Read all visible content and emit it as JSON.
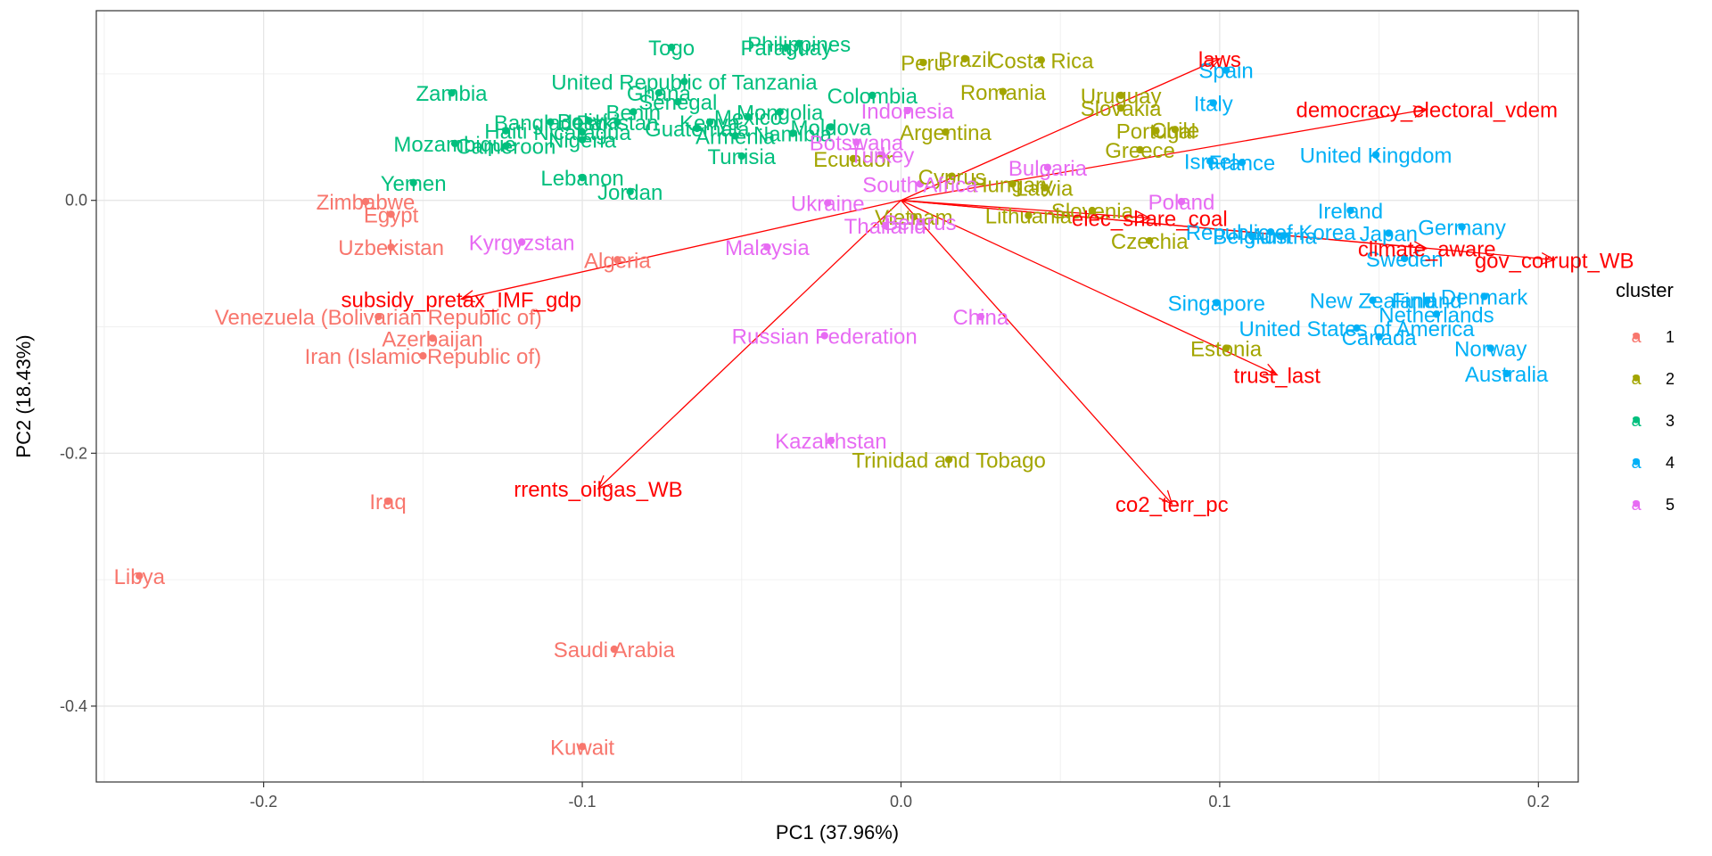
{
  "chart_data": {
    "type": "scatter",
    "xlabel": "PC1 (37.96%)",
    "ylabel": "PC2 (18.43%)",
    "xlim": [
      -0.2525,
      0.2125
    ],
    "ylim": [
      -0.46,
      0.15
    ],
    "x_ticks": [
      -0.2,
      -0.1,
      0.0,
      0.1,
      0.2
    ],
    "x_tick_labels": [
      "-0.2",
      "-0.1",
      "0.0",
      "0.1",
      "0.2"
    ],
    "y_ticks": [
      -0.4,
      -0.2,
      0.0
    ],
    "y_tick_labels": [
      "-0.4",
      "-0.2",
      "0.0"
    ],
    "grid": true,
    "legend": {
      "title": "cluster",
      "placement": "right",
      "items": [
        {
          "key": "1",
          "label": "1",
          "color": "#F8766D"
        },
        {
          "key": "2",
          "label": "2",
          "color": "#A3A500"
        },
        {
          "key": "3",
          "label": "3",
          "color": "#00BF7D"
        },
        {
          "key": "4",
          "label": "4",
          "color": "#00B0F6"
        },
        {
          "key": "5",
          "label": "5",
          "color": "#E76BF3"
        }
      ],
      "key_glyph": "a"
    },
    "colors": {
      "1": "#F8766D",
      "2": "#A3A500",
      "3": "#00BF7D",
      "4": "#00B0F6",
      "5": "#E76BF3",
      "vector": "#FF0000"
    },
    "points": [
      {
        "label": "Zimbabwe",
        "cluster": "1",
        "x": -0.168,
        "y": -0.001
      },
      {
        "label": "Egypt",
        "cluster": "1",
        "x": -0.16,
        "y": -0.011
      },
      {
        "label": "Uzbekistan",
        "cluster": "1",
        "x": -0.16,
        "y": -0.037
      },
      {
        "label": "Algeria",
        "cluster": "1",
        "x": -0.089,
        "y": -0.047
      },
      {
        "label": "Venezuela (Bolivarian Republic of)",
        "cluster": "1",
        "x": -0.164,
        "y": -0.092
      },
      {
        "label": "Azerbaijan",
        "cluster": "1",
        "x": -0.147,
        "y": -0.109
      },
      {
        "label": "Iran (Islamic Republic of)",
        "cluster": "1",
        "x": -0.15,
        "y": -0.123
      },
      {
        "label": "Iraq",
        "cluster": "1",
        "x": -0.161,
        "y": -0.238
      },
      {
        "label": "Libya",
        "cluster": "1",
        "x": -0.239,
        "y": -0.297
      },
      {
        "label": "Saudi Arabia",
        "cluster": "1",
        "x": -0.09,
        "y": -0.355
      },
      {
        "label": "Kuwait",
        "cluster": "1",
        "x": -0.1,
        "y": -0.432
      },
      {
        "label": "Brazil",
        "cluster": "2",
        "x": 0.02,
        "y": 0.112
      },
      {
        "label": "Peru",
        "cluster": "2",
        "x": 0.007,
        "y": 0.109
      },
      {
        "label": "Costa Rica",
        "cluster": "2",
        "x": 0.044,
        "y": 0.111
      },
      {
        "label": "Romania",
        "cluster": "2",
        "x": 0.032,
        "y": 0.086
      },
      {
        "label": "Uruguay",
        "cluster": "2",
        "x": 0.069,
        "y": 0.083
      },
      {
        "label": "Slovakia",
        "cluster": "2",
        "x": 0.069,
        "y": 0.073
      },
      {
        "label": "Argentina",
        "cluster": "2",
        "x": 0.014,
        "y": 0.054
      },
      {
        "label": "Portugal",
        "cluster": "2",
        "x": 0.08,
        "y": 0.055
      },
      {
        "label": "Chile",
        "cluster": "2",
        "x": 0.086,
        "y": 0.056
      },
      {
        "label": "Greece",
        "cluster": "2",
        "x": 0.075,
        "y": 0.04
      },
      {
        "label": "Ecuador",
        "cluster": "2",
        "x": -0.015,
        "y": 0.033
      },
      {
        "label": "Cyprus",
        "cluster": "2",
        "x": 0.016,
        "y": 0.019
      },
      {
        "label": "Latvia",
        "cluster": "2",
        "x": 0.045,
        "y": 0.01
      },
      {
        "label": "Hungary",
        "cluster": "2",
        "x": 0.035,
        "y": 0.013
      },
      {
        "label": "Lithuania",
        "cluster": "2",
        "x": 0.04,
        "y": -0.012
      },
      {
        "label": "Slovenia",
        "cluster": "2",
        "x": 0.06,
        "y": -0.008
      },
      {
        "label": "Czechia",
        "cluster": "2",
        "x": 0.078,
        "y": -0.032
      },
      {
        "label": "Estonia",
        "cluster": "2",
        "x": 0.102,
        "y": -0.117
      },
      {
        "label": "Trinidad and Tobago",
        "cluster": "2",
        "x": 0.015,
        "y": -0.205
      },
      {
        "label": "Vietnam",
        "cluster": "2",
        "x": 0.004,
        "y": -0.013
      },
      {
        "label": "Togo",
        "cluster": "3",
        "x": -0.072,
        "y": 0.121
      },
      {
        "label": "Philippines",
        "cluster": "3",
        "x": -0.032,
        "y": 0.124
      },
      {
        "label": "Paraguay",
        "cluster": "3",
        "x": -0.036,
        "y": 0.121
      },
      {
        "label": "United Republic of Tanzania",
        "cluster": "3",
        "x": -0.068,
        "y": 0.094
      },
      {
        "label": "Zambia",
        "cluster": "3",
        "x": -0.141,
        "y": 0.085
      },
      {
        "label": "Ghana",
        "cluster": "3",
        "x": -0.076,
        "y": 0.085
      },
      {
        "label": "Colombia",
        "cluster": "3",
        "x": -0.009,
        "y": 0.083
      },
      {
        "label": "Senegal",
        "cluster": "3",
        "x": -0.07,
        "y": 0.078
      },
      {
        "label": "Benin",
        "cluster": "3",
        "x": -0.084,
        "y": 0.07
      },
      {
        "label": "Bolivia",
        "cluster": "3",
        "x": -0.098,
        "y": 0.063
      },
      {
        "label": "Bangladesh",
        "cluster": "3",
        "x": -0.11,
        "y": 0.062
      },
      {
        "label": "Pakistan",
        "cluster": "3",
        "x": -0.089,
        "y": 0.062
      },
      {
        "label": "Kenya",
        "cluster": "3",
        "x": -0.06,
        "y": 0.062
      },
      {
        "label": "Mexico",
        "cluster": "3",
        "x": -0.048,
        "y": 0.066
      },
      {
        "label": "Mongolia",
        "cluster": "3",
        "x": -0.038,
        "y": 0.07
      },
      {
        "label": "Guatemala",
        "cluster": "3",
        "x": -0.064,
        "y": 0.057
      },
      {
        "label": "Nicaragua",
        "cluster": "3",
        "x": -0.1,
        "y": 0.054
      },
      {
        "label": "Armenia",
        "cluster": "3",
        "x": -0.052,
        "y": 0.051
      },
      {
        "label": "Namibia",
        "cluster": "3",
        "x": -0.034,
        "y": 0.053
      },
      {
        "label": "Moldova",
        "cluster": "3",
        "x": -0.022,
        "y": 0.058
      },
      {
        "label": "Haiti",
        "cluster": "3",
        "x": -0.124,
        "y": 0.055
      },
      {
        "label": "Nigeria",
        "cluster": "3",
        "x": -0.1,
        "y": 0.048
      },
      {
        "label": "Mozambique",
        "cluster": "3",
        "x": -0.14,
        "y": 0.045
      },
      {
        "label": "Cameroon",
        "cluster": "3",
        "x": -0.124,
        "y": 0.043
      },
      {
        "label": "Tunisia",
        "cluster": "3",
        "x": -0.05,
        "y": 0.035
      },
      {
        "label": "Lebanon",
        "cluster": "3",
        "x": -0.1,
        "y": 0.018
      },
      {
        "label": "Jordan",
        "cluster": "3",
        "x": -0.085,
        "y": 0.007
      },
      {
        "label": "Yemen",
        "cluster": "3",
        "x": -0.153,
        "y": 0.014
      },
      {
        "label": "Spain",
        "cluster": "4",
        "x": 0.102,
        "y": 0.103
      },
      {
        "label": "Italy",
        "cluster": "4",
        "x": 0.098,
        "y": 0.077
      },
      {
        "label": "United Kingdom",
        "cluster": "4",
        "x": 0.149,
        "y": 0.036
      },
      {
        "label": "France",
        "cluster": "4",
        "x": 0.107,
        "y": 0.03
      },
      {
        "label": "Israel",
        "cluster": "4",
        "x": 0.097,
        "y": 0.031
      },
      {
        "label": "Ireland",
        "cluster": "4",
        "x": 0.141,
        "y": -0.008
      },
      {
        "label": "Germany",
        "cluster": "4",
        "x": 0.176,
        "y": -0.021
      },
      {
        "label": "Republic of Korea",
        "cluster": "4",
        "x": 0.116,
        "y": -0.025
      },
      {
        "label": "Japan",
        "cluster": "4",
        "x": 0.153,
        "y": -0.026
      },
      {
        "label": "Austria",
        "cluster": "4",
        "x": 0.12,
        "y": -0.028
      },
      {
        "label": "Belgium",
        "cluster": "4",
        "x": 0.11,
        "y": -0.028
      },
      {
        "label": "Sweden",
        "cluster": "4",
        "x": 0.158,
        "y": -0.046
      },
      {
        "label": "Singapore",
        "cluster": "4",
        "x": 0.099,
        "y": -0.081
      },
      {
        "label": "New Zealand",
        "cluster": "4",
        "x": 0.148,
        "y": -0.079
      },
      {
        "label": "Denmark",
        "cluster": "4",
        "x": 0.183,
        "y": -0.076
      },
      {
        "label": "Finland",
        "cluster": "4",
        "x": 0.165,
        "y": -0.079
      },
      {
        "label": "Netherlands",
        "cluster": "4",
        "x": 0.168,
        "y": -0.09
      },
      {
        "label": "United States of America",
        "cluster": "4",
        "x": 0.143,
        "y": -0.101
      },
      {
        "label": "Canada",
        "cluster": "4",
        "x": 0.15,
        "y": -0.108
      },
      {
        "label": "Norway",
        "cluster": "4",
        "x": 0.185,
        "y": -0.117
      },
      {
        "label": "Australia",
        "cluster": "4",
        "x": 0.19,
        "y": -0.137
      },
      {
        "label": "Indonesia",
        "cluster": "5",
        "x": 0.002,
        "y": 0.071
      },
      {
        "label": "Botswana",
        "cluster": "5",
        "x": -0.014,
        "y": 0.046
      },
      {
        "label": "Turkey",
        "cluster": "5",
        "x": -0.006,
        "y": 0.036
      },
      {
        "label": "Bulgaria",
        "cluster": "5",
        "x": 0.046,
        "y": 0.026
      },
      {
        "label": "South Africa",
        "cluster": "5",
        "x": 0.006,
        "y": 0.013
      },
      {
        "label": "Poland",
        "cluster": "5",
        "x": 0.088,
        "y": -0.001
      },
      {
        "label": "Ukraine",
        "cluster": "5",
        "x": -0.023,
        "y": -0.002
      },
      {
        "label": "Belarus",
        "cluster": "5",
        "x": 0.006,
        "y": -0.017
      },
      {
        "label": "Thailand",
        "cluster": "5",
        "x": -0.005,
        "y": -0.02
      },
      {
        "label": "Kyrgyzstan",
        "cluster": "5",
        "x": -0.119,
        "y": -0.033
      },
      {
        "label": "Malaysia",
        "cluster": "5",
        "x": -0.042,
        "y": -0.037
      },
      {
        "label": "China",
        "cluster": "5",
        "x": 0.025,
        "y": -0.092
      },
      {
        "label": "Russian Federation",
        "cluster": "5",
        "x": -0.024,
        "y": -0.107
      },
      {
        "label": "Kazakhstan",
        "cluster": "5",
        "x": -0.022,
        "y": -0.19
      }
    ],
    "vectors": [
      {
        "label": "laws",
        "x": 0.1,
        "y": 0.112
      },
      {
        "label": "democracy_electoral_vdem",
        "x": 0.165,
        "y": 0.072
      },
      {
        "label": "gov_corrupt_WB",
        "x": 0.205,
        "y": -0.047
      },
      {
        "label": "climate_aware",
        "x": 0.165,
        "y": -0.038
      },
      {
        "label": "elec_share_coal",
        "x": 0.078,
        "y": -0.014
      },
      {
        "label": "trust_last",
        "x": 0.118,
        "y": -0.138
      },
      {
        "label": "co2_terr_pc",
        "x": 0.085,
        "y": -0.24
      },
      {
        "label": "rrents_oilgas_WB",
        "x": -0.095,
        "y": -0.228
      },
      {
        "label": "subsidy_pretax_IMF_gdp",
        "x": -0.138,
        "y": -0.078
      }
    ]
  }
}
